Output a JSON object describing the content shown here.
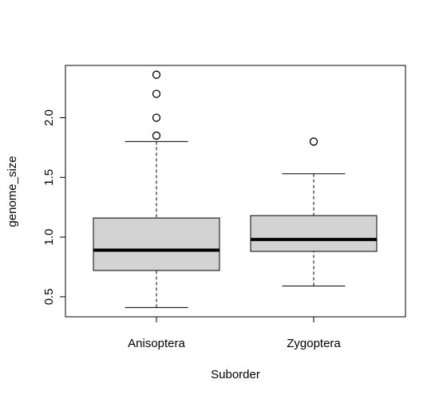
{
  "chart_data": {
    "type": "box",
    "xlabel": "Suborder",
    "ylabel": "genome_size",
    "categories": [
      "Anisoptera",
      "Zygoptera"
    ],
    "boxes": [
      {
        "low": 0.41,
        "q1": 0.72,
        "median": 0.89,
        "q3": 1.16,
        "high": 1.8,
        "outliers": [
          1.85,
          2.0,
          2.2,
          2.36
        ]
      },
      {
        "low": 0.59,
        "q1": 0.88,
        "median": 0.98,
        "q3": 1.18,
        "high": 1.53,
        "outliers": [
          1.8
        ]
      }
    ],
    "color": "#d3d3d3",
    "ylim": [
      0.332,
      2.438
    ],
    "yticks": [
      0.5,
      {
        "value": 1,
        "label": "1.0"
      },
      1.5,
      {
        "value": 2,
        "label": "2.0"
      }
    ]
  }
}
